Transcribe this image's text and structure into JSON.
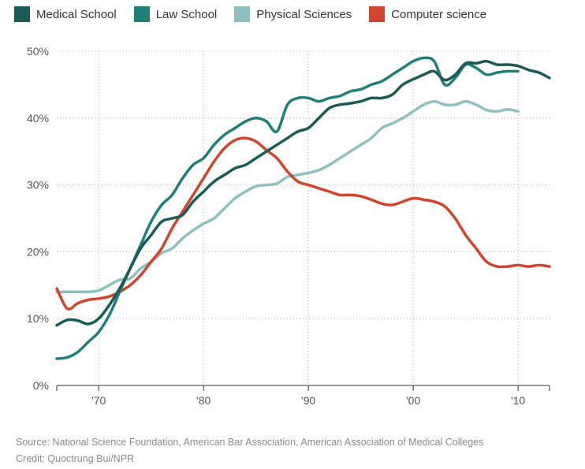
{
  "legend": {
    "items": [
      {
        "label": "Medical School",
        "color": "#1a5c55"
      },
      {
        "label": "Law School",
        "color": "#1f7f79"
      },
      {
        "label": "Physical Sciences",
        "color": "#8fc0c0"
      },
      {
        "label": "Computer science",
        "color": "#d1452e"
      }
    ]
  },
  "footer": {
    "source": "Source: National Science Foundation, American Bar Association, American Association of Medical Colleges",
    "credit": "Credit: Quoctrung Bui/NPR"
  },
  "chart_data": {
    "type": "line",
    "title": "",
    "xlabel": "",
    "ylabel": "",
    "xlim": [
      1966,
      2013
    ],
    "ylim": [
      0,
      50
    ],
    "grid": true,
    "legend_position": "top",
    "y_ticks": [
      {
        "value": 0,
        "label": "0%"
      },
      {
        "value": 10,
        "label": "10%"
      },
      {
        "value": 20,
        "label": "20%"
      },
      {
        "value": 30,
        "label": "30%"
      },
      {
        "value": 40,
        "label": "40%"
      },
      {
        "value": 50,
        "label": "50%"
      }
    ],
    "x_ticks": [
      {
        "value": 1970,
        "label": "'70"
      },
      {
        "value": 1980,
        "label": "'80"
      },
      {
        "value": 1990,
        "label": "'90"
      },
      {
        "value": 2000,
        "label": "'00"
      },
      {
        "value": 2010,
        "label": "'10"
      }
    ],
    "series": [
      {
        "name": "Medical School",
        "color": "#1a5c55",
        "points": [
          [
            1966,
            9
          ],
          [
            1967,
            9.8
          ],
          [
            1968,
            9.7
          ],
          [
            1969,
            9.2
          ],
          [
            1970,
            10
          ],
          [
            1971,
            12
          ],
          [
            1972,
            14.5
          ],
          [
            1973,
            17.5
          ],
          [
            1974,
            20.5
          ],
          [
            1975,
            22.5
          ],
          [
            1976,
            24.5
          ],
          [
            1977,
            25
          ],
          [
            1978,
            25.5
          ],
          [
            1979,
            27.5
          ],
          [
            1980,
            29
          ],
          [
            1981,
            30.5
          ],
          [
            1982,
            31.5
          ],
          [
            1983,
            32.5
          ],
          [
            1984,
            33
          ],
          [
            1985,
            34
          ],
          [
            1986,
            35
          ],
          [
            1987,
            36
          ],
          [
            1988,
            37
          ],
          [
            1989,
            38
          ],
          [
            1990,
            38.5
          ],
          [
            1991,
            40
          ],
          [
            1992,
            41.5
          ],
          [
            1993,
            42
          ],
          [
            1994,
            42.2
          ],
          [
            1995,
            42.5
          ],
          [
            1996,
            43
          ],
          [
            1997,
            43
          ],
          [
            1998,
            43.5
          ],
          [
            1999,
            45
          ],
          [
            2000,
            45.8
          ],
          [
            2001,
            46.5
          ],
          [
            2002,
            47
          ],
          [
            2003,
            45.7
          ],
          [
            2004,
            46.5
          ],
          [
            2005,
            48.2
          ],
          [
            2006,
            48.2
          ],
          [
            2007,
            48.5
          ],
          [
            2008,
            48
          ],
          [
            2009,
            48
          ],
          [
            2010,
            47.8
          ],
          [
            2011,
            47.2
          ],
          [
            2012,
            46.8
          ],
          [
            2013,
            46
          ]
        ]
      },
      {
        "name": "Law School",
        "color": "#1f7f79",
        "points": [
          [
            1966,
            4
          ],
          [
            1967,
            4.2
          ],
          [
            1968,
            5
          ],
          [
            1969,
            6.5
          ],
          [
            1970,
            8
          ],
          [
            1971,
            10.5
          ],
          [
            1972,
            14
          ],
          [
            1973,
            17.5
          ],
          [
            1974,
            21
          ],
          [
            1975,
            24.5
          ],
          [
            1976,
            27
          ],
          [
            1977,
            28.5
          ],
          [
            1978,
            31
          ],
          [
            1979,
            33
          ],
          [
            1980,
            34
          ],
          [
            1981,
            36
          ],
          [
            1982,
            37.5
          ],
          [
            1983,
            38.5
          ],
          [
            1984,
            39.5
          ],
          [
            1985,
            40
          ],
          [
            1986,
            39.5
          ],
          [
            1987,
            38
          ],
          [
            1988,
            42
          ],
          [
            1989,
            43
          ],
          [
            1990,
            43
          ],
          [
            1991,
            42.5
          ],
          [
            1992,
            43
          ],
          [
            1993,
            43.3
          ],
          [
            1994,
            44
          ],
          [
            1995,
            44.3
          ],
          [
            1996,
            45
          ],
          [
            1997,
            45.5
          ],
          [
            1998,
            46.5
          ],
          [
            1999,
            47.5
          ],
          [
            2000,
            48.5
          ],
          [
            2001,
            49
          ],
          [
            2002,
            48.5
          ],
          [
            2003,
            45
          ],
          [
            2004,
            46
          ],
          [
            2005,
            48
          ],
          [
            2006,
            47.5
          ],
          [
            2007,
            46.5
          ],
          [
            2008,
            46.8
          ],
          [
            2009,
            47
          ],
          [
            2010,
            47
          ]
        ]
      },
      {
        "name": "Physical Sciences",
        "color": "#8fc0c0",
        "points": [
          [
            1966,
            14
          ],
          [
            1967,
            14
          ],
          [
            1968,
            14
          ],
          [
            1969,
            14
          ],
          [
            1970,
            14.2
          ],
          [
            1971,
            15
          ],
          [
            1972,
            15.8
          ],
          [
            1973,
            16
          ],
          [
            1974,
            17.5
          ],
          [
            1975,
            18.5
          ],
          [
            1976,
            19.8
          ],
          [
            1977,
            20.5
          ],
          [
            1978,
            22
          ],
          [
            1979,
            23.2
          ],
          [
            1980,
            24.2
          ],
          [
            1981,
            25
          ],
          [
            1982,
            26.5
          ],
          [
            1983,
            28
          ],
          [
            1984,
            29
          ],
          [
            1985,
            29.8
          ],
          [
            1986,
            30
          ],
          [
            1987,
            30.2
          ],
          [
            1988,
            31.2
          ],
          [
            1989,
            31.5
          ],
          [
            1990,
            31.8
          ],
          [
            1991,
            32.2
          ],
          [
            1992,
            33
          ],
          [
            1993,
            34
          ],
          [
            1994,
            35
          ],
          [
            1995,
            36
          ],
          [
            1996,
            37
          ],
          [
            1997,
            38.5
          ],
          [
            1998,
            39.2
          ],
          [
            1999,
            40
          ],
          [
            2000,
            41
          ],
          [
            2001,
            42
          ],
          [
            2002,
            42.5
          ],
          [
            2003,
            42
          ],
          [
            2004,
            42
          ],
          [
            2005,
            42.5
          ],
          [
            2006,
            42
          ],
          [
            2007,
            41.2
          ],
          [
            2008,
            41
          ],
          [
            2009,
            41.3
          ],
          [
            2010,
            41
          ]
        ]
      },
      {
        "name": "Computer science",
        "color": "#d1452e",
        "points": [
          [
            1966,
            14.5
          ],
          [
            1967,
            11.5
          ],
          [
            1968,
            12.3
          ],
          [
            1969,
            12.8
          ],
          [
            1970,
            13
          ],
          [
            1971,
            13.3
          ],
          [
            1972,
            14
          ],
          [
            1973,
            15
          ],
          [
            1974,
            16.5
          ],
          [
            1975,
            18.5
          ],
          [
            1976,
            20.5
          ],
          [
            1977,
            23.5
          ],
          [
            1978,
            26
          ],
          [
            1979,
            28.5
          ],
          [
            1980,
            31
          ],
          [
            1981,
            33.5
          ],
          [
            1982,
            35.5
          ],
          [
            1983,
            36.7
          ],
          [
            1984,
            37
          ],
          [
            1985,
            36.5
          ],
          [
            1986,
            35.2
          ],
          [
            1987,
            34
          ],
          [
            1988,
            32
          ],
          [
            1989,
            30.5
          ],
          [
            1990,
            30
          ],
          [
            1991,
            29.5
          ],
          [
            1992,
            29
          ],
          [
            1993,
            28.5
          ],
          [
            1994,
            28.5
          ],
          [
            1995,
            28.3
          ],
          [
            1996,
            27.8
          ],
          [
            1997,
            27.2
          ],
          [
            1998,
            27
          ],
          [
            1999,
            27.5
          ],
          [
            2000,
            28
          ],
          [
            2001,
            27.8
          ],
          [
            2002,
            27.5
          ],
          [
            2003,
            26.8
          ],
          [
            2004,
            25
          ],
          [
            2005,
            22.5
          ],
          [
            2006,
            20.5
          ],
          [
            2007,
            18.5
          ],
          [
            2008,
            17.8
          ],
          [
            2009,
            17.8
          ],
          [
            2010,
            18
          ],
          [
            2011,
            17.8
          ],
          [
            2012,
            18
          ],
          [
            2013,
            17.8
          ]
        ]
      }
    ]
  }
}
